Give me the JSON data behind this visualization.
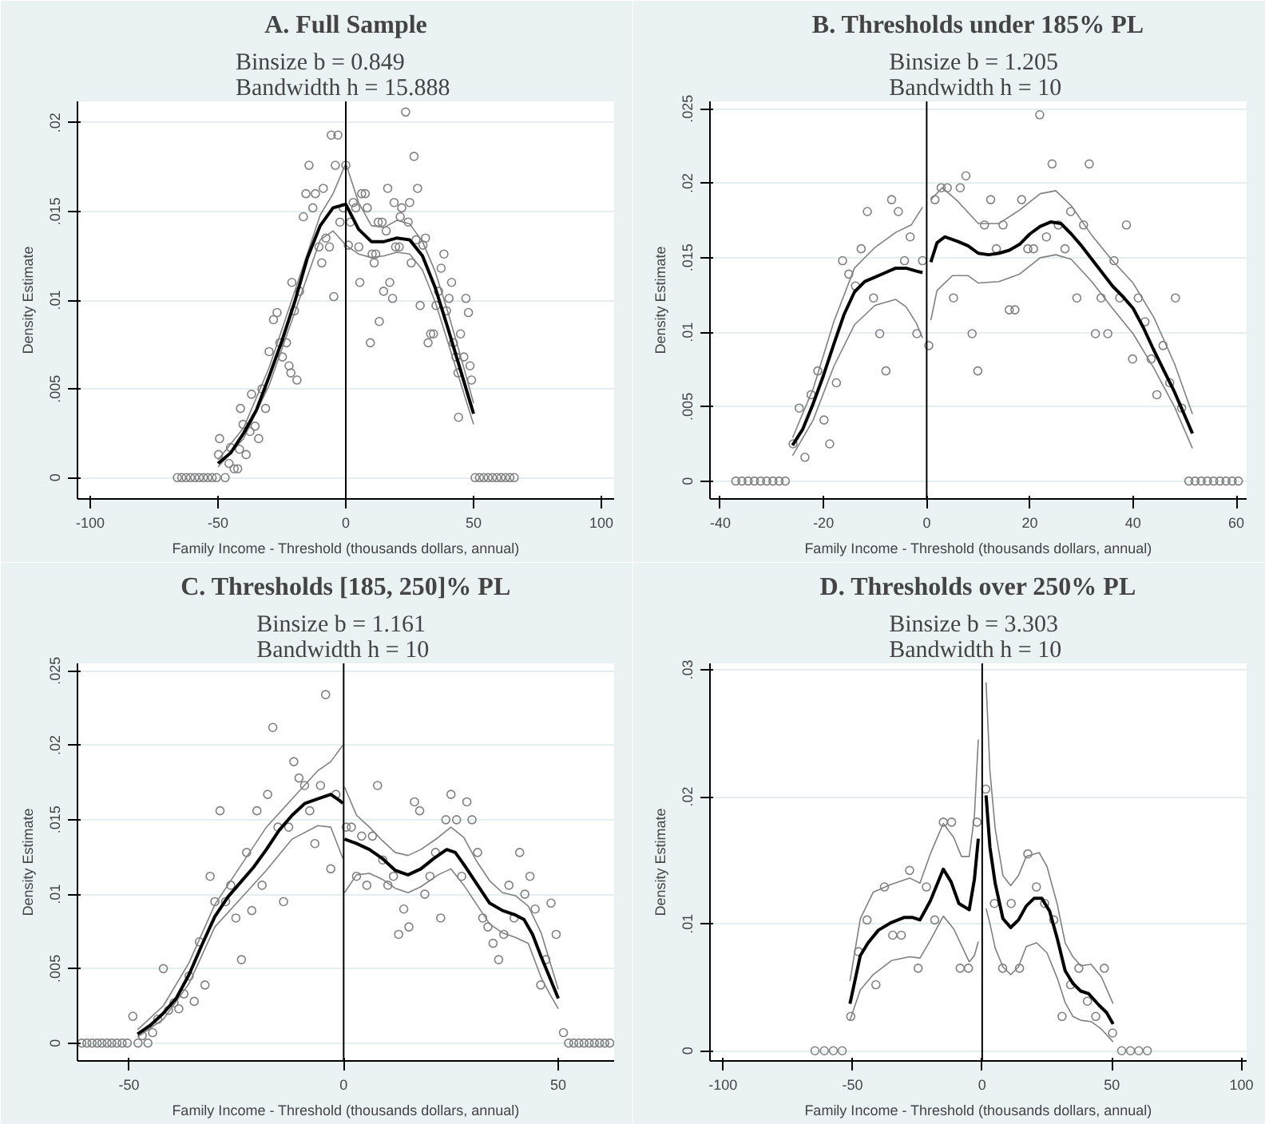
{
  "chart_data": [
    {
      "type": "scatter",
      "title": "A. Full Sample",
      "subtitle": "Binsize  b = 0.849\nBandwidth  h = 15.888",
      "xlabel": "Family Income - Threshold (thousands dollars, annual)",
      "ylabel": "Density Estimate",
      "xlim": [
        -105,
        105
      ],
      "xticks": [
        -100,
        -50,
        0,
        50,
        100
      ],
      "ylim": [
        -0.0012,
        0.0212
      ],
      "yticks": [
        0,
        {
          "value": 0.005,
          "label": ".005"
        },
        {
          "value": 0.01,
          "label": ".01"
        },
        {
          "value": 0.015,
          "label": ".015"
        },
        {
          "value": 0.02,
          "label": ".02"
        }
      ],
      "grid": "y",
      "ref_lines": [
        {
          "axis": "x",
          "value": 0,
          "color": "#000000"
        }
      ],
      "series": [
        {
          "marker": "circle",
          "color": "#808080",
          "x": [
            -65.9,
            -64.2,
            -62.5,
            -60.8,
            -59.1,
            -57.4,
            -55.7,
            -54,
            -52.3,
            -50.6,
            -49.4,
            -49.8,
            -47.2,
            -45.7,
            -45.1,
            -43.7,
            -42.3,
            -41.6,
            -41.2,
            -40.2,
            -39,
            -37.5,
            -36.9,
            -35.5,
            -34.1,
            -32.8,
            -31.4,
            -30,
            -28.3,
            -26.9,
            -25.8,
            -24.8,
            -23.2,
            -22.2,
            -21.5,
            -21.1,
            -20.1,
            -19.1,
            -18.1,
            -16.6,
            -15.6,
            -14.4,
            -12.9,
            -11.9,
            -10.5,
            -9.4,
            -8.8,
            -7.8,
            -6.4,
            -5.7,
            -4.7,
            -4.1,
            -3.1,
            -2.3,
            -1,
            0,
            1,
            1.8,
            2.9,
            3.9,
            5.1,
            5.5,
            6.2,
            7.6,
            8.4,
            9.6,
            10.3,
            11.1,
            11.7,
            12.7,
            13.1,
            14.2,
            14.8,
            15.8,
            16.4,
            17.2,
            18.3,
            18.9,
            19.5,
            20.9,
            21.3,
            21.9,
            23.4,
            24.4,
            25,
            25.6,
            26.7,
            27.5,
            28.1,
            29.1,
            30.2,
            31.2,
            32.2,
            33.2,
            34.3,
            35.3,
            36.3,
            37.3,
            38.4,
            39.4,
            40.4,
            41.4,
            42.1,
            43.1,
            43.9,
            44.9,
            44.1,
            46.2,
            47,
            48,
            48.6,
            49.2,
            50.6,
            52.3,
            54,
            55.7,
            57.4,
            59.1,
            60.8,
            62.5,
            64.2,
            65.9
          ],
          "values": [
            0,
            0,
            0,
            0,
            0,
            0,
            0,
            0,
            0,
            0,
            0.0022,
            0.0013,
            0,
            0.0008,
            0.0017,
            0.0005,
            0.0005,
            0.0016,
            0.0039,
            0.003,
            0.0013,
            0.0026,
            0.0047,
            0.0029,
            0.0022,
            0.005,
            0.0039,
            0.0071,
            0.0089,
            0.0093,
            0.0076,
            0.0068,
            0.0076,
            0.0063,
            0.0059,
            0.011,
            0.0094,
            0.0055,
            0.0105,
            0.0147,
            0.016,
            0.0176,
            0.0152,
            0.016,
            0.013,
            0.0121,
            0.0163,
            0.0135,
            0.013,
            0.0193,
            0.0102,
            0.0176,
            0.0193,
            0.0144,
            0.0152,
            0.0176,
            0.0131,
            0.0144,
            0.0155,
            0.0152,
            0.013,
            0.011,
            0.016,
            0.016,
            0.0152,
            0.0076,
            0.0126,
            0.0121,
            0.0126,
            0.0144,
            0.0088,
            0.0144,
            0.0105,
            0.0139,
            0.0163,
            0.011,
            0.0101,
            0.0155,
            0.013,
            0.013,
            0.0147,
            0.0152,
            0.0206,
            0.0144,
            0.0155,
            0.0121,
            0.0181,
            0.0134,
            0.0163,
            0.0097,
            0.0131,
            0.0135,
            0.0076,
            0.0081,
            0.0081,
            0.0097,
            0.0105,
            0.0118,
            0.0126,
            0.0094,
            0.0101,
            0.011,
            0.0076,
            0.0068,
            0.0059,
            0.0081,
            0.0034,
            0.0068,
            0.0101,
            0.0093,
            0.0063,
            0.0055,
            0,
            0,
            0,
            0,
            0,
            0,
            0,
            0,
            0,
            0
          ]
        },
        {
          "type": "line",
          "marker": "none",
          "color": "#808080",
          "x": [
            -50,
            -40,
            -30,
            -20,
            -10,
            -5,
            0,
            5,
            10,
            15,
            20,
            25,
            30,
            35,
            40,
            45,
            50
          ],
          "values": [
            0.001,
            0.0028,
            0.0062,
            0.0105,
            0.0148,
            0.016,
            0.0177,
            0.0155,
            0.0142,
            0.0141,
            0.0145,
            0.0143,
            0.0133,
            0.0116,
            0.0093,
            0.0068,
            0.0042
          ]
        },
        {
          "type": "line",
          "marker": "none",
          "color": "#808080",
          "x": [
            -50,
            -40,
            -30,
            -20,
            -10,
            -5,
            0,
            5,
            10,
            15,
            20,
            25,
            30,
            35,
            40,
            45,
            50
          ],
          "values": [
            0.0006,
            0.0022,
            0.0052,
            0.0093,
            0.0134,
            0.0139,
            0.0131,
            0.0126,
            0.0124,
            0.0125,
            0.0127,
            0.0126,
            0.0117,
            0.0099,
            0.0076,
            0.0053,
            0.003
          ]
        },
        {
          "type": "line",
          "marker": "none",
          "color": "#000000",
          "x": [
            -50,
            -45,
            -40,
            -35,
            -30,
            -25,
            -20,
            -15,
            -10,
            -5,
            0,
            5,
            10,
            15,
            20,
            25,
            30,
            35,
            40,
            45,
            50
          ],
          "values": [
            0.0008,
            0.0014,
            0.0025,
            0.0038,
            0.0057,
            0.0077,
            0.0099,
            0.0124,
            0.0142,
            0.0152,
            0.0154,
            0.014,
            0.0133,
            0.0133,
            0.0135,
            0.0134,
            0.0125,
            0.0107,
            0.0084,
            0.006,
            0.0036
          ]
        }
      ]
    },
    {
      "type": "scatter",
      "title": "B. Thresholds under 185% PL",
      "subtitle": "Binsize  b = 1.205\nBandwidth  h = 10",
      "xlabel": "Family Income - Threshold (thousands dollars, annual)",
      "ylabel": "Density Estimate",
      "xlim": [
        -42,
        62
      ],
      "xticks": [
        -40,
        -20,
        0,
        20,
        40,
        60
      ],
      "ylim": [
        -0.0012,
        0.0255
      ],
      "yticks": [
        0,
        {
          "value": 0.005,
          "label": ".005"
        },
        {
          "value": 0.01,
          "label": ".01"
        },
        {
          "value": 0.015,
          "label": ".015"
        },
        {
          "value": 0.02,
          "label": ".02"
        },
        {
          "value": 0.025,
          "label": ".025"
        }
      ],
      "grid": "y",
      "ref_lines": [
        {
          "axis": "x",
          "value": 0,
          "color": "#000000"
        }
      ],
      "series": [
        {
          "marker": "circle",
          "color": "#808080",
          "x": [
            -37,
            -35.8,
            -34.6,
            -33.4,
            -32.2,
            -31,
            -29.8,
            -28.6,
            -27.4,
            -25.9,
            -24.7,
            -23.6,
            -22.4,
            -21.1,
            -19.9,
            -18.8,
            -17.5,
            -16.3,
            -15.1,
            -13.8,
            -12.7,
            -11.5,
            -10.3,
            -9.1,
            -7.9,
            -6.8,
            -5.5,
            -4.3,
            -3.2,
            -1.9,
            -0.8,
            0.4,
            1.6,
            2.8,
            4,
            5.2,
            6.5,
            7.6,
            8.8,
            9.9,
            11.2,
            12.4,
            13.5,
            14.8,
            16,
            17.1,
            18.4,
            19.6,
            20.7,
            21.9,
            23.2,
            24.3,
            25.5,
            26.8,
            27.9,
            29.1,
            30.4,
            31.5,
            32.7,
            33.8,
            35.1,
            36.3,
            37.4,
            38.7,
            39.9,
            41,
            42.3,
            43.5,
            44.6,
            45.8,
            47.1,
            48.2,
            49.4,
            50.8,
            52,
            53.2,
            54.4,
            55.6,
            56.8,
            58,
            59.2,
            60.4
          ],
          "values": [
            0,
            0,
            0,
            0,
            0,
            0,
            0,
            0,
            0,
            0.0025,
            0.0049,
            0.0016,
            0.0058,
            0.0074,
            0.0041,
            0.0025,
            0.0066,
            0.0148,
            0.0139,
            0.0131,
            0.0156,
            0.0181,
            0.0123,
            0.0099,
            0.0074,
            0.0189,
            0.0181,
            0.0148,
            0.0164,
            0.0099,
            0.0148,
            0.0091,
            0.0189,
            0.0197,
            0.0197,
            0.0123,
            0.0197,
            0.0205,
            0.0099,
            0.0074,
            0.0172,
            0.0189,
            0.0156,
            0.0172,
            0.0115,
            0.0115,
            0.0189,
            0.0156,
            0.0156,
            0.0246,
            0.0164,
            0.0213,
            0.0172,
            0.0156,
            0.0181,
            0.0123,
            0.0172,
            0.0213,
            0.0099,
            0.0123,
            0.0099,
            0.0148,
            0.0123,
            0.0172,
            0.0082,
            0.0123,
            0.0107,
            0.0082,
            0.0058,
            0.0091,
            0.0066,
            0.0123,
            0.0049,
            0,
            0,
            0,
            0,
            0,
            0,
            0,
            0,
            0
          ]
        },
        {
          "type": "line",
          "marker": "none",
          "color": "#808080",
          "x": [
            -26,
            -22,
            -18,
            -14,
            -10,
            -6,
            -3,
            -0.8
          ],
          "values": [
            0.0029,
            0.0062,
            0.0107,
            0.0143,
            0.0157,
            0.0167,
            0.0172,
            0.0184
          ]
        },
        {
          "type": "line",
          "marker": "none",
          "color": "#808080",
          "x": [
            -26,
            -22,
            -18,
            -14,
            -10,
            -6,
            -4,
            -2,
            -0.8
          ],
          "values": [
            0.0017,
            0.0041,
            0.0077,
            0.0105,
            0.0118,
            0.0122,
            0.0117,
            0.0106,
            0.0096
          ]
        },
        {
          "type": "line",
          "marker": "none",
          "color": "#808080",
          "x": [
            0.8,
            3,
            6,
            10,
            14,
            18,
            22,
            25,
            28,
            32,
            36,
            40,
            44,
            48,
            51.5
          ],
          "values": [
            0.0189,
            0.0197,
            0.0188,
            0.0173,
            0.0173,
            0.0182,
            0.0193,
            0.0195,
            0.0185,
            0.0165,
            0.0148,
            0.0133,
            0.011,
            0.0079,
            0.0045
          ]
        },
        {
          "type": "line",
          "marker": "none",
          "color": "#808080",
          "x": [
            0.8,
            2,
            5,
            8,
            10,
            14,
            18,
            22,
            25,
            28,
            32,
            36,
            40,
            44,
            48,
            51.5
          ],
          "values": [
            0.0108,
            0.0128,
            0.0138,
            0.0138,
            0.0133,
            0.0134,
            0.0139,
            0.015,
            0.0152,
            0.0149,
            0.0134,
            0.0116,
            0.0099,
            0.0076,
            0.005,
            0.0022
          ]
        },
        {
          "type": "line",
          "marker": "none",
          "color": "#000000",
          "x": [
            -26,
            -24,
            -22,
            -20,
            -18,
            -16,
            -14,
            -12,
            -10,
            -8,
            -6,
            -4,
            -2,
            -0.8
          ],
          "values": [
            0.0024,
            0.0035,
            0.0052,
            0.0071,
            0.0092,
            0.0112,
            0.0127,
            0.0134,
            0.0137,
            0.014,
            0.0143,
            0.0143,
            0.0141,
            0.014
          ]
        },
        {
          "type": "line",
          "marker": "none",
          "color": "#000000",
          "x": [
            0.8,
            2,
            3.5,
            6,
            8,
            10,
            12,
            14,
            16,
            18,
            20,
            22,
            24,
            26,
            28,
            30,
            32,
            34,
            36,
            38,
            40,
            42,
            44,
            46,
            48,
            50,
            51.5
          ],
          "values": [
            0.0147,
            0.016,
            0.0164,
            0.0161,
            0.0158,
            0.0153,
            0.0152,
            0.0153,
            0.0155,
            0.0159,
            0.0166,
            0.0171,
            0.0174,
            0.0173,
            0.0166,
            0.0158,
            0.0149,
            0.014,
            0.0131,
            0.0124,
            0.0116,
            0.0103,
            0.0088,
            0.0074,
            0.006,
            0.0044,
            0.0032
          ]
        }
      ]
    },
    {
      "type": "scatter",
      "title": "C. Thresholds [185, 250]% PL",
      "subtitle": "Binsize  b = 1.161\nBandwidth  h = 10",
      "xlabel": "Family Income - Threshold (thousands dollars, annual)",
      "ylabel": "Density Estimate",
      "xlim": [
        -62,
        63
      ],
      "xticks": [
        -50,
        0,
        50
      ],
      "ylim": [
        -0.0012,
        0.0255
      ],
      "yticks": [
        0,
        {
          "value": 0.005,
          "label": ".005"
        },
        {
          "value": 0.01,
          "label": ".01"
        },
        {
          "value": 0.015,
          "label": ".015"
        },
        {
          "value": 0.02,
          "label": ".02"
        },
        {
          "value": 0.025,
          "label": ".025"
        }
      ],
      "grid": "y",
      "ref_lines": [
        {
          "axis": "x",
          "value": 0,
          "color": "#000000"
        }
      ],
      "series": [
        {
          "marker": "circle",
          "color": "#808080",
          "x": [
            -61,
            -59.8,
            -58.6,
            -57.4,
            -56.3,
            -55.1,
            -54,
            -52.8,
            -51.6,
            -50.4,
            -49.1,
            -47.9,
            -46.9,
            -45.6,
            -44.5,
            -43.3,
            -42,
            -40.8,
            -39.5,
            -38.4,
            -37.2,
            -36,
            -34.8,
            -33.6,
            -32.3,
            -31.1,
            -30,
            -28.8,
            -27.5,
            -26.3,
            -25.1,
            -23.8,
            -22.6,
            -21.4,
            -20.2,
            -19,
            -17.7,
            -16.5,
            -15.3,
            -14,
            -12.8,
            -11.6,
            -10.4,
            -9.1,
            -7.9,
            -6.7,
            -5.4,
            -4.2,
            -3,
            -1.8,
            0.6,
            1.8,
            3,
            4.2,
            5.4,
            6.7,
            7.9,
            9.1,
            10.3,
            11.6,
            12.8,
            14,
            15.2,
            16.5,
            17.7,
            18.9,
            20.1,
            21.4,
            22.6,
            23.8,
            25,
            26.3,
            27.5,
            28.7,
            29.9,
            31.2,
            32.4,
            33.6,
            34.8,
            36.1,
            37.3,
            38.5,
            39.7,
            41,
            42.2,
            43.4,
            44.6,
            45.9,
            47.1,
            48.3,
            49.5,
            51.2,
            52.4,
            53.6,
            54.8,
            56,
            57.2,
            58.4,
            59.6,
            60.8,
            62
          ],
          "values": [
            0,
            0,
            0,
            0,
            0,
            0,
            0,
            0,
            0,
            0,
            0.0018,
            0,
            0.0005,
            0,
            0.0007,
            0.0016,
            0.005,
            0.0022,
            0.0027,
            0.0023,
            0.0033,
            0.0045,
            0.0028,
            0.0068,
            0.0039,
            0.0112,
            0.0095,
            0.0156,
            0.0095,
            0.0106,
            0.0084,
            0.0056,
            0.0128,
            0.0089,
            0.0156,
            0.0106,
            0.0167,
            0.0212,
            0.0145,
            0.0095,
            0.0145,
            0.0189,
            0.0178,
            0.0173,
            0.0156,
            0.0134,
            0.0173,
            0.0234,
            0.0117,
            0.0167,
            0.0145,
            0.0145,
            0.0112,
            0.0139,
            0.0106,
            0.0139,
            0.0173,
            0.0123,
            0.0106,
            0.0112,
            0.0073,
            0.009,
            0.0078,
            0.0162,
            0.0156,
            0.01,
            0.0112,
            0.0128,
            0.0084,
            0.015,
            0.0167,
            0.015,
            0.0112,
            0.0162,
            0.015,
            0.0128,
            0.0084,
            0.0078,
            0.0067,
            0.0056,
            0.0073,
            0.0106,
            0.0084,
            0.0128,
            0.01,
            0.0112,
            0.009,
            0.0039,
            0.0056,
            0.0094,
            0.0073,
            0.0007,
            0,
            0,
            0,
            0,
            0,
            0,
            0,
            0,
            0
          ]
        },
        {
          "type": "line",
          "marker": "none",
          "color": "#808080",
          "x": [
            -48,
            -42,
            -36,
            -30,
            -24,
            -18,
            -12,
            -6,
            -3,
            -0.2
          ],
          "values": [
            0.0009,
            0.0025,
            0.0054,
            0.0093,
            0.0119,
            0.0145,
            0.0164,
            0.0183,
            0.0189,
            0.02
          ]
        },
        {
          "type": "line",
          "marker": "none",
          "color": "#808080",
          "x": [
            -48,
            -42,
            -36,
            -30,
            -24,
            -18,
            -12,
            -6,
            -3,
            -0.2
          ],
          "values": [
            0.0004,
            0.0016,
            0.004,
            0.0078,
            0.0097,
            0.0116,
            0.0137,
            0.0146,
            0.0145,
            0.0124
          ]
        },
        {
          "type": "line",
          "marker": "none",
          "color": "#808080",
          "x": [
            0.2,
            3,
            6,
            9,
            12,
            15,
            18,
            22,
            25,
            28,
            31,
            34,
            37,
            40,
            43,
            46,
            48,
            50
          ],
          "values": [
            0.0172,
            0.0153,
            0.0145,
            0.0136,
            0.0128,
            0.0126,
            0.013,
            0.0138,
            0.0145,
            0.0138,
            0.0122,
            0.0109,
            0.0101,
            0.0099,
            0.0092,
            0.0074,
            0.0055,
            0.0036
          ]
        },
        {
          "type": "line",
          "marker": "none",
          "color": "#808080",
          "x": [
            0.2,
            3,
            6,
            9,
            12,
            15,
            18,
            22,
            25,
            28,
            31,
            34,
            37,
            40,
            43,
            46,
            48,
            50
          ],
          "values": [
            0.0101,
            0.0113,
            0.0114,
            0.011,
            0.0104,
            0.0101,
            0.0105,
            0.0113,
            0.0117,
            0.0106,
            0.0093,
            0.008,
            0.0074,
            0.0071,
            0.0067,
            0.0044,
            0.0033,
            0.0023
          ]
        },
        {
          "type": "line",
          "marker": "none",
          "color": "#000000",
          "x": [
            -48,
            -45,
            -42,
            -39,
            -36,
            -33,
            -30,
            -27,
            -24,
            -21,
            -18,
            -15,
            -12,
            -9,
            -6,
            -3,
            -1,
            -0.2
          ],
          "values": [
            0.0006,
            0.0012,
            0.002,
            0.003,
            0.0046,
            0.0066,
            0.0085,
            0.0098,
            0.0108,
            0.0118,
            0.013,
            0.0143,
            0.0153,
            0.0161,
            0.0164,
            0.0167,
            0.0163,
            0.0161
          ]
        },
        {
          "type": "line",
          "marker": "none",
          "color": "#000000",
          "x": [
            0.2,
            3,
            6,
            9,
            12,
            15,
            18,
            21,
            24,
            26,
            28,
            31,
            34,
            37,
            40,
            42,
            44,
            46,
            48,
            50
          ],
          "values": [
            0.0137,
            0.0134,
            0.013,
            0.0124,
            0.0116,
            0.0113,
            0.0117,
            0.0124,
            0.013,
            0.0128,
            0.012,
            0.0107,
            0.0094,
            0.0089,
            0.0086,
            0.0083,
            0.0073,
            0.0058,
            0.0044,
            0.003
          ]
        }
      ]
    },
    {
      "type": "scatter",
      "title": "D. Thresholds over 250% PL",
      "subtitle": "Binsize  b = 3.303\nBandwidth  h = 10",
      "xlabel": "Family Income - Threshold (thousands dollars, annual)",
      "ylabel": "Density Estimate",
      "xlim": [
        -105,
        102
      ],
      "xticks": [
        -100,
        -50,
        0,
        50,
        100
      ],
      "ylim": [
        -0.0008,
        0.0305
      ],
      "yticks": [
        0,
        {
          "value": 0.01,
          "label": ".01"
        },
        {
          "value": 0.02,
          "label": ".02"
        },
        {
          "value": 0.03,
          "label": ".03"
        }
      ],
      "grid": "y",
      "ref_lines": [
        {
          "axis": "x",
          "value": 0,
          "color": "#000000"
        }
      ],
      "series": [
        {
          "marker": "circle",
          "color": "#808080",
          "x": [
            -64.5,
            -60.9,
            -57.4,
            -54,
            -50.7,
            -47.7,
            -44.4,
            -41,
            -37.7,
            -34.5,
            -31.2,
            -28,
            -24.7,
            -21.5,
            -18.3,
            -15,
            -11.8,
            -8.5,
            -5.3,
            -2,
            1.4,
            4.7,
            7.9,
            11.2,
            14.4,
            17.6,
            20.9,
            24.1,
            27.6,
            30.8,
            34.1,
            37.3,
            40.6,
            43.8,
            47.1,
            50.3,
            53.8,
            57.2,
            60.4,
            63.7
          ],
          "values": [
            0,
            0,
            0,
            0,
            0.0027,
            0.0078,
            0.0103,
            0.0052,
            0.0129,
            0.0091,
            0.0091,
            0.0142,
            0.0065,
            0.0129,
            0.0103,
            0.018,
            0.018,
            0.0065,
            0.0065,
            0.018,
            0.0206,
            0.0116,
            0.0065,
            0.0116,
            0.0065,
            0.0155,
            0.0129,
            0.0116,
            0.0103,
            0.0027,
            0.0052,
            0.0065,
            0.0039,
            0.0027,
            0.0065,
            0.0014,
            0,
            0,
            0,
            0
          ]
        },
        {
          "type": "line",
          "marker": "none",
          "color": "#808080",
          "x": [
            -51,
            -47,
            -42,
            -35,
            -28,
            -24,
            -20,
            -15,
            -11,
            -8,
            -5,
            -3,
            -1.5
          ],
          "values": [
            0.0055,
            0.0104,
            0.0125,
            0.0131,
            0.0136,
            0.0132,
            0.0155,
            0.0179,
            0.0168,
            0.0153,
            0.0153,
            0.0185,
            0.0245
          ]
        },
        {
          "type": "line",
          "marker": "none",
          "color": "#808080",
          "x": [
            -51,
            -47,
            -42,
            -35,
            -28,
            -24,
            -20,
            -15,
            -11,
            -8,
            -5,
            -3,
            -1.5
          ],
          "values": [
            0.0024,
            0.0048,
            0.006,
            0.0071,
            0.0074,
            0.0073,
            0.0087,
            0.0106,
            0.0096,
            0.0083,
            0.007,
            0.0075,
            0.0086
          ]
        },
        {
          "type": "line",
          "marker": "none",
          "color": "#808080",
          "x": [
            1.5,
            3,
            5,
            8,
            11,
            14,
            17,
            22,
            25,
            29,
            32,
            35,
            38,
            42,
            46,
            50.5
          ],
          "values": [
            0.029,
            0.022,
            0.0175,
            0.0138,
            0.013,
            0.0138,
            0.0153,
            0.0156,
            0.0145,
            0.0115,
            0.0085,
            0.0074,
            0.0067,
            0.0068,
            0.0058,
            0.0037
          ]
        },
        {
          "type": "line",
          "marker": "none",
          "color": "#808080",
          "x": [
            1.5,
            3,
            5,
            8,
            11,
            14,
            17,
            21,
            25,
            29,
            32,
            35,
            38,
            42,
            46,
            50.5
          ],
          "values": [
            0.0112,
            0.01,
            0.0081,
            0.0066,
            0.006,
            0.0066,
            0.0082,
            0.0085,
            0.0077,
            0.0057,
            0.0038,
            0.0027,
            0.0024,
            0.0023,
            0.0017,
            0.0007
          ]
        },
        {
          "type": "line",
          "marker": "none",
          "color": "#000000",
          "x": [
            -51,
            -47,
            -44,
            -40,
            -35,
            -30,
            -27,
            -24,
            -20,
            -17,
            -15,
            -12,
            -9,
            -5,
            -3,
            -1.5
          ],
          "values": [
            0.0037,
            0.0075,
            0.0085,
            0.0095,
            0.0101,
            0.0105,
            0.0105,
            0.0103,
            0.0118,
            0.0133,
            0.0143,
            0.0133,
            0.0116,
            0.0111,
            0.0135,
            0.0167
          ]
        },
        {
          "type": "line",
          "marker": "none",
          "color": "#000000",
          "x": [
            1.5,
            3,
            5,
            8,
            11,
            14,
            17,
            20,
            23,
            26,
            29,
            32,
            35,
            38,
            41,
            45,
            48,
            50.5
          ],
          "values": [
            0.0201,
            0.016,
            0.0132,
            0.0104,
            0.0097,
            0.0103,
            0.0114,
            0.012,
            0.012,
            0.011,
            0.0088,
            0.0063,
            0.0053,
            0.0047,
            0.0045,
            0.0036,
            0.003,
            0.0021
          ]
        }
      ]
    }
  ]
}
